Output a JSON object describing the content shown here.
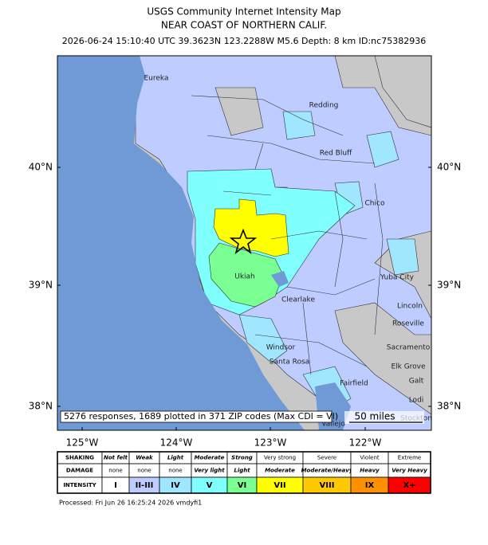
{
  "header": {
    "title": "USGS Community Internet Intensity Map",
    "region": "NEAR COAST OF NORTHERN CALIF.",
    "event": "2026-06-24 15:10:40 UTC 39.3623N 123.2288W M5.6 Depth: 8 km ID:nc75382936"
  },
  "map": {
    "lat_labels": [
      "40°N",
      "39°N",
      "38°N"
    ],
    "lon_labels": [
      "125°W",
      "124°W",
      "123°W",
      "122°W"
    ],
    "places": [
      "Eureka",
      "Redding",
      "Red Bluff",
      "Chico",
      "Yuba City",
      "Ukiah",
      "Clearlake",
      "Lincoln",
      "Roseville",
      "Sacramento",
      "Elk Grove",
      "Galt",
      "Lodi",
      "Stockton",
      "Windsor",
      "Santa Rosa",
      "Fairfield",
      "Vallejo"
    ],
    "responses": "5276 responses, 1689 plotted in 371 ZIP codes (Max CDI = VI)",
    "scale": "50 miles"
  },
  "legend": {
    "rows": [
      {
        "label": "SHAKING",
        "cells": [
          "Not felt",
          "Weak",
          "Light",
          "Moderate",
          "Strong",
          "Very strong",
          "Severe",
          "Violent",
          "Extreme"
        ]
      },
      {
        "label": "DAMAGE",
        "cells": [
          "none",
          "none",
          "none",
          "Very light",
          "Light",
          "Moderate",
          "Moderate/Heavy",
          "Heavy",
          "Very Heavy"
        ]
      },
      {
        "label": "INTENSITY",
        "cells": [
          "I",
          "II-III",
          "IV",
          "V",
          "VI",
          "VII",
          "VIII",
          "IX",
          "X+"
        ]
      }
    ]
  },
  "footer": "Processed: Fri Jun 26 16:25:24 2026 vmdyfi1"
}
